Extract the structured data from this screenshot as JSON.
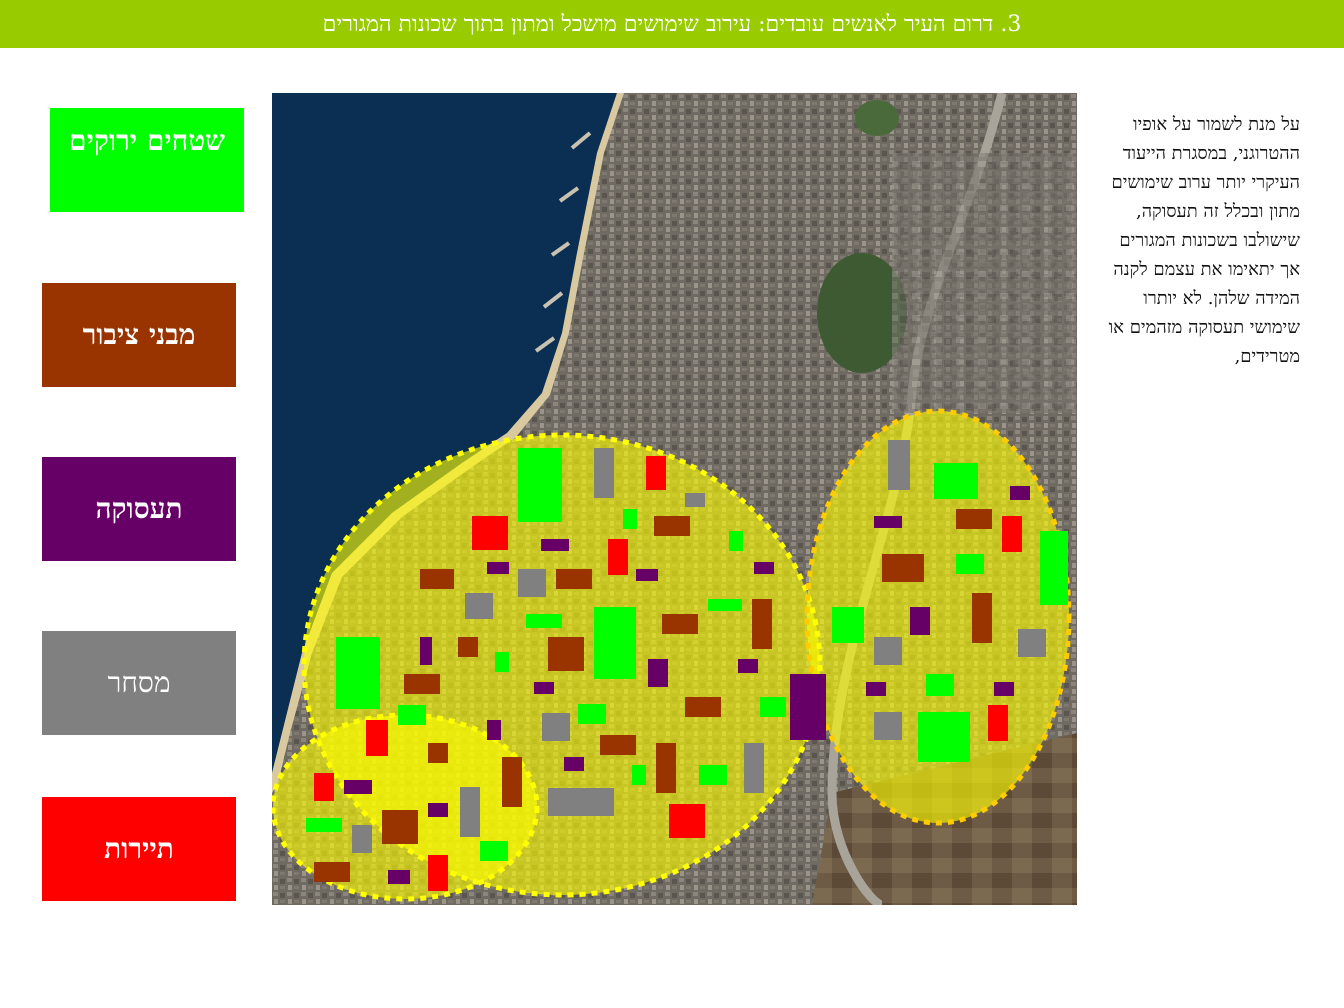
{
  "header": {
    "title": "3. דרום העיר לאנשים עובדים: עירוב שימושים מושכל ומתון בתוך שכונות המגורים"
  },
  "legend": {
    "green_spaces": "שטחים ירוקים",
    "public_buildings": "מבני ציבור",
    "employment": "תעסוקה",
    "commerce": "מסחר",
    "tourism": "תיירות"
  },
  "colors": {
    "header_bg": "#99cc00",
    "green_spaces": "#00ff00",
    "public_buildings": "#993300",
    "employment": "#660066",
    "commerce": "#808080",
    "tourism": "#ff0000",
    "zone_fill": "#ffff00",
    "zone_outline": "#ffff00",
    "sea": "#0b2f52"
  },
  "description": {
    "text": "על מנת לשמור על אופיו ההטרוגני, במסגרת הייעוד העיקרי יותר ערוב שימושים מתון ובכלל זה תעסוקה, שישולבו בשכונות המגורים אך יתאימו את עצמם לקנה המידה שלהן. לא יותרו שימושי תעסוקה מזהמים או מטרידים,"
  }
}
